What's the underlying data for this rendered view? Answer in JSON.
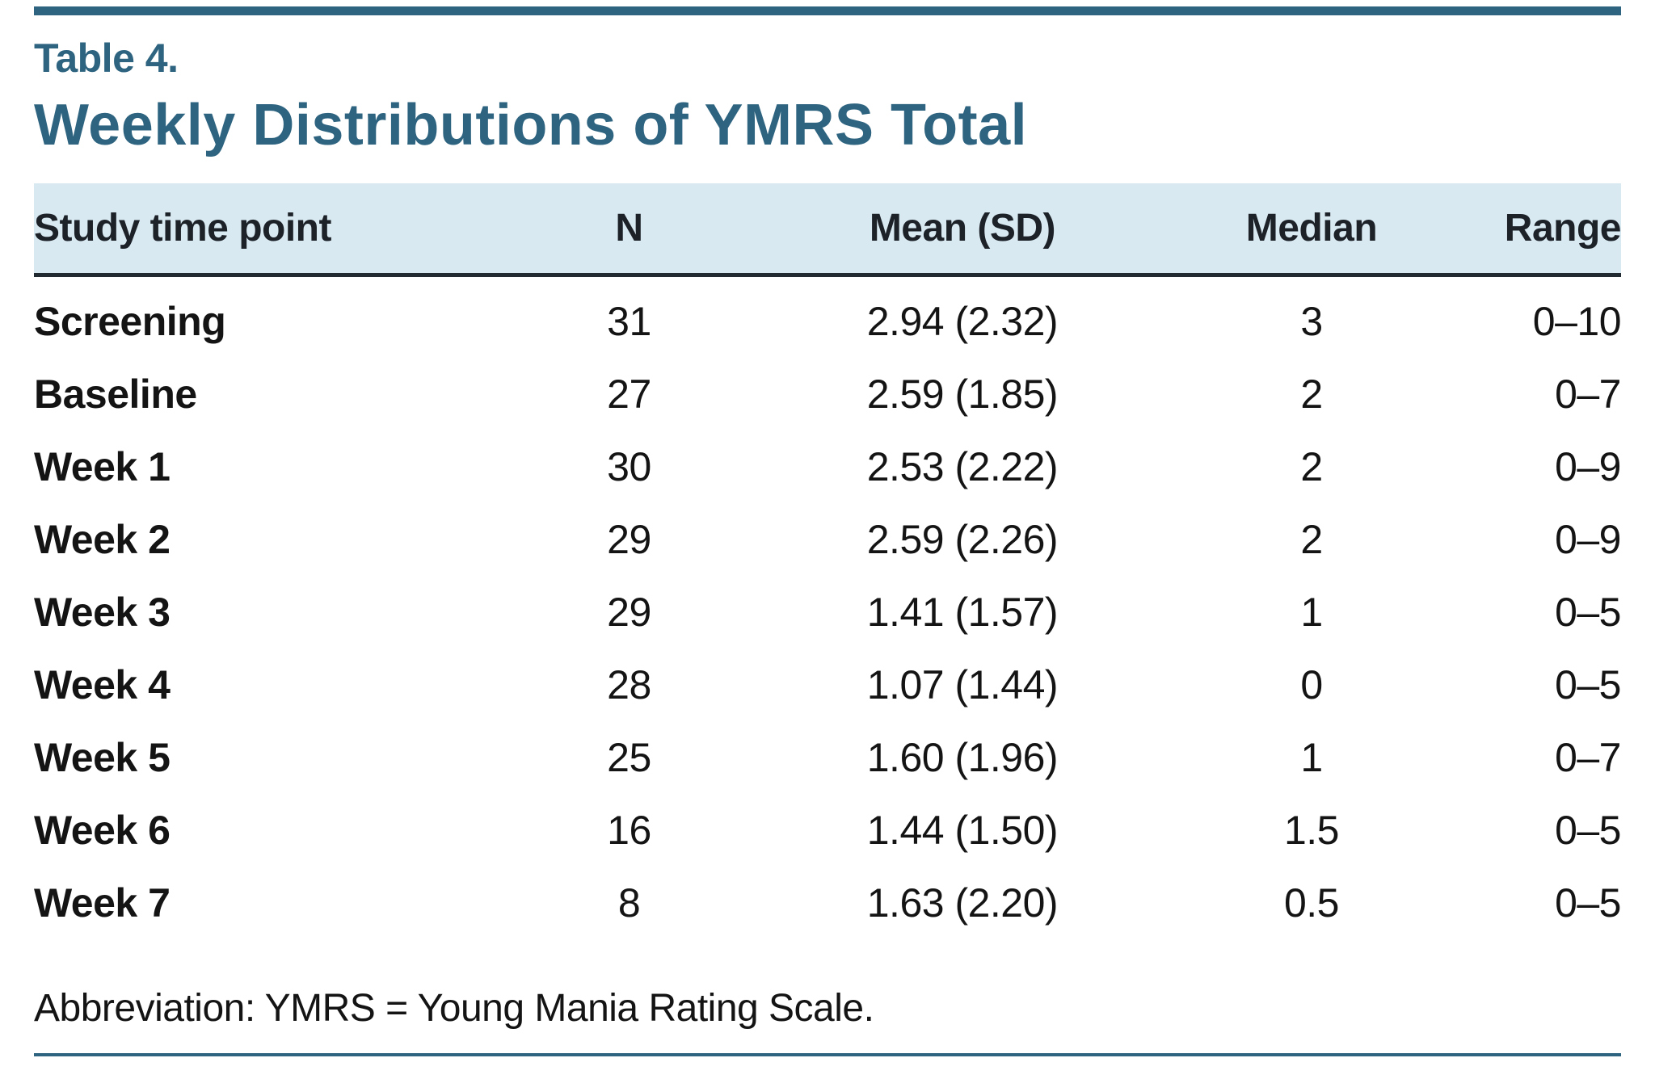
{
  "colors": {
    "accent": "#2e6480",
    "header_bg": "#d9e9f2",
    "rule_dark": "#222a31",
    "text": "#141414"
  },
  "table_label": "Table 4.",
  "title": "Weekly Distributions of YMRS Total",
  "columns": [
    "Study time point",
    "N",
    "Mean (SD)",
    "Median",
    "Range"
  ],
  "rows": [
    [
      "Screening",
      "31",
      "2.94 (2.32)",
      "3",
      "0–10"
    ],
    [
      "Baseline",
      "27",
      "2.59 (1.85)",
      "2",
      "0–7"
    ],
    [
      "Week 1",
      "30",
      "2.53 (2.22)",
      "2",
      "0–9"
    ],
    [
      "Week 2",
      "29",
      "2.59 (2.26)",
      "2",
      "0–9"
    ],
    [
      "Week 3",
      "29",
      "1.41 (1.57)",
      "1",
      "0–5"
    ],
    [
      "Week 4",
      "28",
      "1.07 (1.44)",
      "0",
      "0–5"
    ],
    [
      "Week 5",
      "25",
      "1.60 (1.96)",
      "1",
      "0–7"
    ],
    [
      "Week 6",
      "16",
      "1.44 (1.50)",
      "1.5",
      "0–5"
    ],
    [
      "Week 7",
      "8",
      "1.63 (2.20)",
      "0.5",
      "0–5"
    ]
  ],
  "footnote": "Abbreviation: YMRS = Young Mania Rating Scale."
}
